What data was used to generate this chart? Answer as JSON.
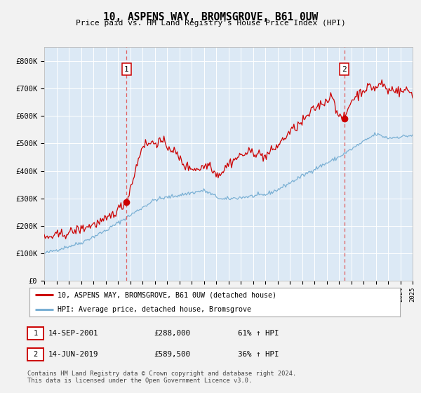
{
  "title": "10, ASPENS WAY, BROMSGROVE, B61 0UW",
  "subtitle": "Price paid vs. HM Land Registry's House Price Index (HPI)",
  "fig_bg_color": "#f2f2f2",
  "plot_bg_color": "#dce9f5",
  "x_start_year": 1995,
  "x_end_year": 2025,
  "ylim": [
    0,
    850000
  ],
  "yticks": [
    0,
    100000,
    200000,
    300000,
    400000,
    500000,
    600000,
    700000,
    800000
  ],
  "ytick_labels": [
    "£0",
    "£100K",
    "£200K",
    "£300K",
    "£400K",
    "£500K",
    "£600K",
    "£700K",
    "£800K"
  ],
  "marker1_year": 2001.71,
  "marker1_value": 288000,
  "marker2_year": 2019.45,
  "marker2_value": 589500,
  "red_line_color": "#cc0000",
  "blue_line_color": "#7ab0d4",
  "legend_red_label": "10, ASPENS WAY, BROMSGROVE, B61 0UW (detached house)",
  "legend_blue_label": "HPI: Average price, detached house, Bromsgrove",
  "table_row1": [
    "1",
    "14-SEP-2001",
    "£288,000",
    "61% ↑ HPI"
  ],
  "table_row2": [
    "2",
    "14-JUN-2019",
    "£589,500",
    "36% ↑ HPI"
  ],
  "footer": "Contains HM Land Registry data © Crown copyright and database right 2024.\nThis data is licensed under the Open Government Licence v3.0.",
  "grid_color": "#ffffff",
  "vline_color": "#e06060"
}
